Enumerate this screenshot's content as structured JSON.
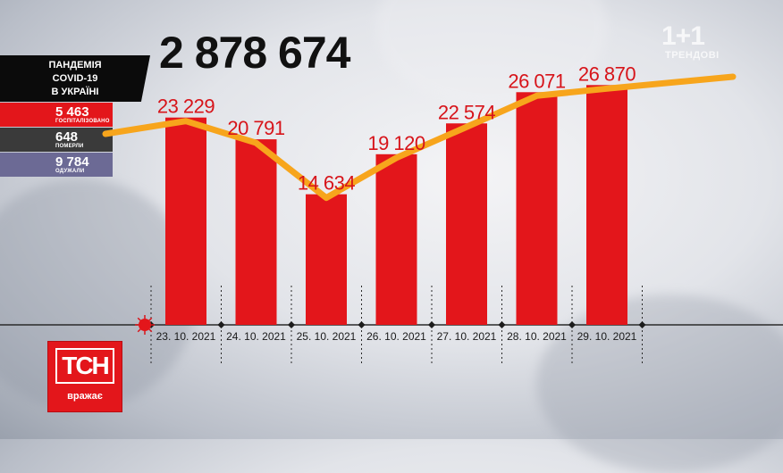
{
  "header": {
    "total": "2 878 674"
  },
  "panel": {
    "title_lines": [
      "ПАНДЕМІЯ",
      "COVID-19",
      "В УКРАЇНІ"
    ],
    "hospitalized": {
      "value": "5 463",
      "label": "ГОСПІТАЛІЗОВАНО"
    },
    "deaths": {
      "value": "648",
      "label": "ПОМЕРЛИ"
    },
    "recovered": {
      "value": "9 784",
      "label": "ОДУЖАЛИ"
    }
  },
  "branding": {
    "channel_logo": "1+1",
    "channel_sub": "ТРЕНДОВІ",
    "tsn_logo": "ТСН",
    "tsn_sub": "вражає"
  },
  "chart_data": {
    "type": "bar",
    "title": "",
    "xlabel": "",
    "ylabel": "",
    "categories": [
      "23. 10. 2021",
      "24. 10. 2021",
      "25. 10. 2021",
      "26. 10. 2021",
      "27. 10. 2021",
      "28. 10. 2021",
      "29. 10. 2021"
    ],
    "values": [
      23229,
      20791,
      14634,
      19120,
      22574,
      26071,
      26870
    ],
    "value_labels": [
      "23 229",
      "20 791",
      "14 634",
      "19 120",
      "22 574",
      "26 071",
      "26 870"
    ],
    "ylim": [
      0,
      30000
    ],
    "trend_line": true,
    "grid": false,
    "colors": {
      "bar": "#e3161b",
      "trend": "#f7a51c",
      "label": "#d7141a",
      "axis": "#2a2a2a"
    }
  }
}
